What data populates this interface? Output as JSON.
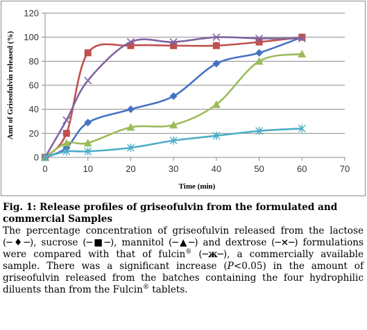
{
  "chart_data": {
    "type": "line",
    "title": "",
    "xlabel": "Time (min)",
    "ylabel": "Amt of Griseofulvin released (%)",
    "xlim": [
      0,
      70
    ],
    "ylim": [
      0,
      120
    ],
    "xticks": [
      0,
      10,
      20,
      30,
      40,
      50,
      60,
      70
    ],
    "yticks": [
      0,
      20,
      40,
      60,
      80,
      100,
      120
    ],
    "grid": "horizontal",
    "legend": "none",
    "series": [
      {
        "marker": "diamond",
        "color": "#4472C4",
        "x": [
          0,
          5,
          10,
          20,
          30,
          40,
          50,
          60
        ],
        "y": [
          0,
          8,
          29,
          40,
          51,
          78,
          87,
          100
        ]
      },
      {
        "marker": "square",
        "color": "#C0504D",
        "x": [
          0,
          5,
          10,
          20,
          30,
          40,
          50,
          60
        ],
        "y": [
          0,
          20,
          87,
          93,
          93,
          93,
          96,
          100
        ]
      },
      {
        "marker": "triangle",
        "color": "#9BBB59",
        "x": [
          0,
          5,
          10,
          20,
          30,
          40,
          50,
          60
        ],
        "y": [
          0,
          12,
          12,
          25,
          27,
          44,
          80,
          86
        ]
      },
      {
        "marker": "x",
        "color": "#8064A2",
        "x": [
          0,
          5,
          10,
          20,
          30,
          40,
          50,
          60
        ],
        "y": [
          0,
          31,
          64,
          96,
          96,
          100,
          99,
          99
        ]
      },
      {
        "marker": "star",
        "color": "#4BACC6",
        "x": [
          0,
          5,
          10,
          20,
          30,
          40,
          50,
          60
        ],
        "y": [
          0,
          5,
          5,
          8,
          14,
          18,
          22,
          24
        ]
      }
    ]
  },
  "caption": {
    "fig_title": "Fig. 1: Release profiles of griseofulvin from the formulated and commercial Samples",
    "p1": "The percentage concentration of griseofulvin released from the lactose (",
    "sym_lactose": "─♦─",
    "p2": "), sucrose (",
    "sym_sucrose": "─■─",
    "p3": "), mannitol (",
    "sym_mannitol": "─▲─",
    "p4": ") and dextrose (",
    "sym_dextrose": "─×─",
    "p5": ") formulations were compared with that of fulcin",
    "reg1": "®",
    "p6": " (",
    "sym_fulcin": "─ж─",
    "p7": "), a commercially available sample. There was a significant increase (",
    "p_italic": "P",
    "p8": "<0.05) in the amount of griseofulvin released from the batches containing the four hydrophilic diluents than from the Fulcin",
    "reg2": "®",
    "p9": " tablets."
  }
}
